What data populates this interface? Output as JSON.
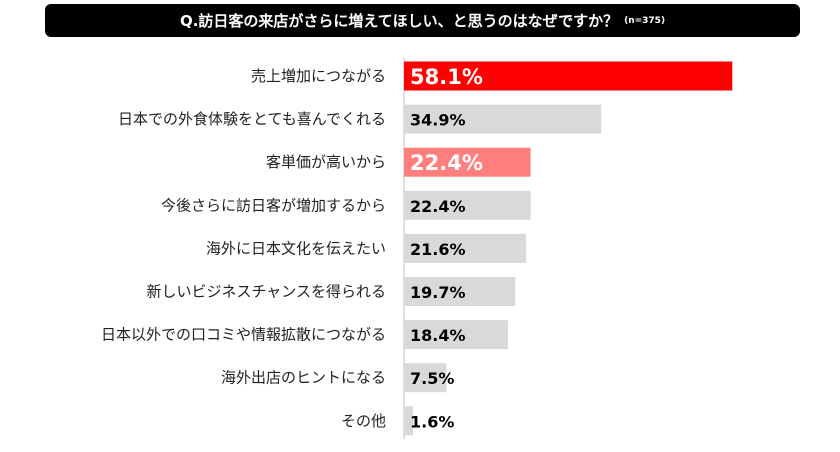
{
  "question": {
    "text": "Q.訪日客の来店がさらに増えてほしい、と思うのはなぜですか？",
    "sample_size": "(n=375)"
  },
  "colors": {
    "highlight_primary": "#ff0000",
    "highlight_secondary": "#ff7f7f",
    "default_bar": "#d9d9d9",
    "axis": "#bfbfbf",
    "label_on_highlight": "#ffffff",
    "label_default": "#000000"
  },
  "chart_data": {
    "type": "bar",
    "orientation": "horizontal",
    "title": "Q.訪日客の来店がさらに増えてほしい、と思うのはなぜですか？",
    "categories": [
      "売上増加につながる",
      "日本での外食体験をとても喜んでくれる",
      "客単価が高いから",
      "今後さらに訪日客が増加するから",
      "海外に日本文化を伝えたい",
      "新しいビジネスチャンスを得られる",
      "日本以外での口コミや情報拡散につながる",
      "海外出店のヒントになる",
      "その他"
    ],
    "values": [
      58.1,
      34.9,
      22.4,
      22.4,
      21.6,
      19.7,
      18.4,
      7.5,
      1.6
    ],
    "value_labels": [
      "58.1%",
      "34.9%",
      "22.4%",
      "22.4%",
      "21.6%",
      "19.7%",
      "18.4%",
      "7.5%",
      "1.6%"
    ],
    "highlight": [
      "primary",
      "none",
      "secondary",
      "none",
      "none",
      "none",
      "none",
      "none",
      "none"
    ],
    "xlim": [
      0,
      60
    ],
    "grid": false,
    "legend": "none"
  }
}
